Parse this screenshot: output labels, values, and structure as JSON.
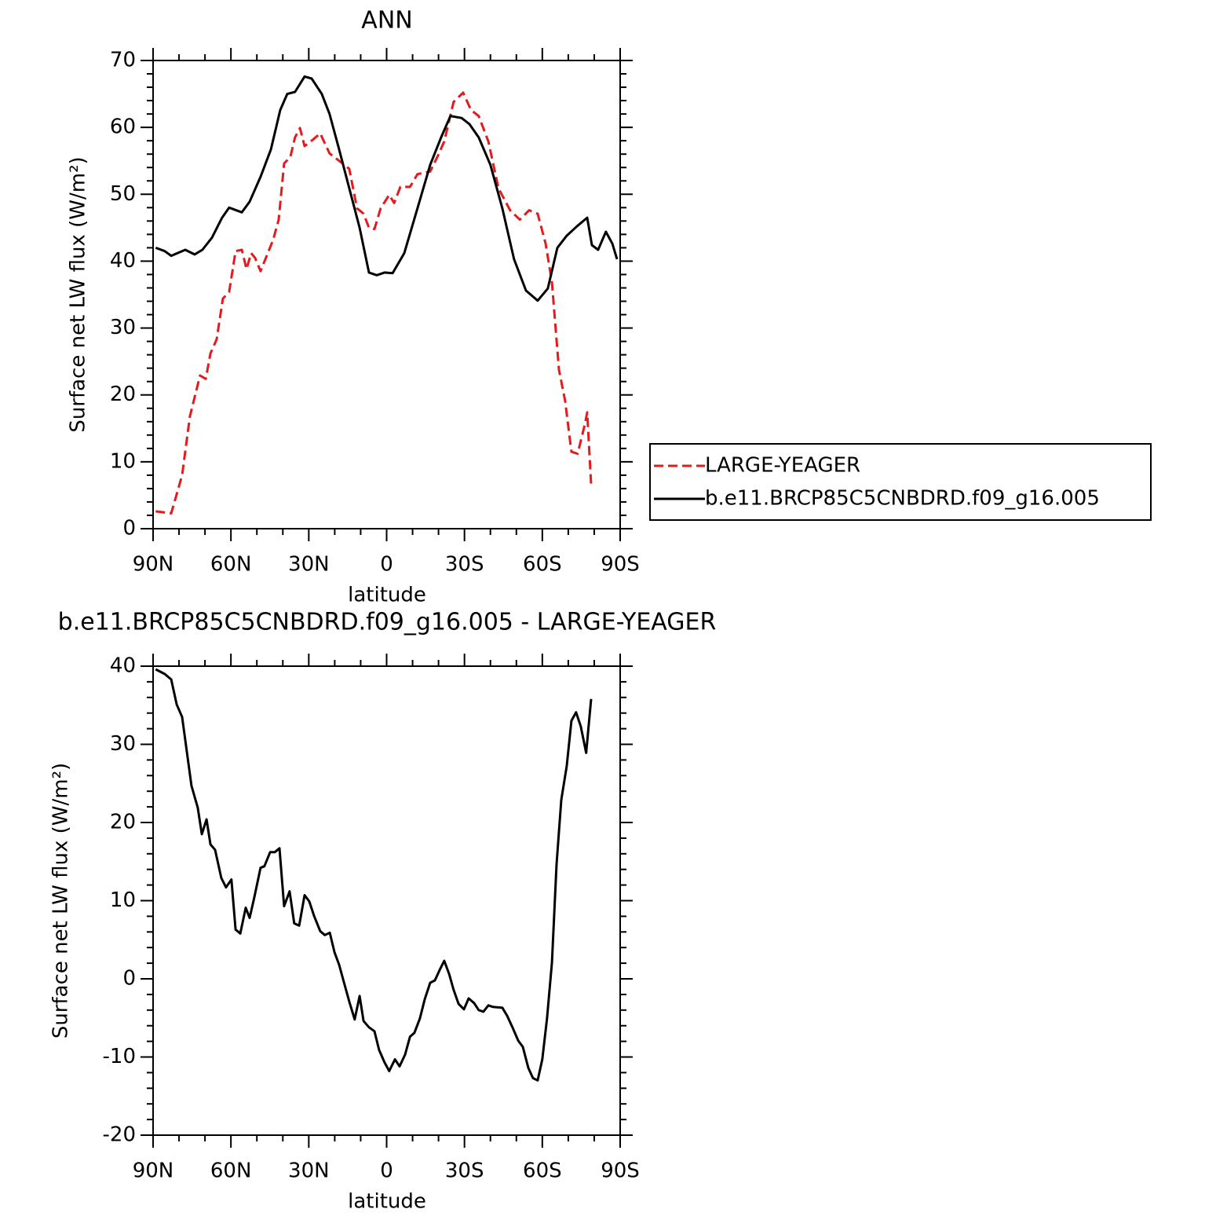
{
  "chart_data": [
    {
      "type": "line",
      "title": "ANN",
      "xlabel": "latitude",
      "ylabel": "Surface net LW flux (W/m²)",
      "xlim": [
        90,
        -90
      ],
      "xticks": [
        {
          "value": 90,
          "label": "90N"
        },
        {
          "value": 60,
          "label": "60N"
        },
        {
          "value": 30,
          "label": "30N"
        },
        0,
        {
          "value": -30,
          "label": "30S"
        },
        {
          "value": -60,
          "label": "60S"
        },
        {
          "value": -90,
          "label": "90S"
        }
      ],
      "ylim": [
        0,
        70
      ],
      "yticks": [
        0,
        10,
        20,
        30,
        40,
        50,
        60,
        70
      ],
      "legend": "outside-right",
      "series": [
        {
          "name": "LARGE-YEAGER",
          "color": "#e41a1c",
          "dash": true,
          "x": [
            89,
            83,
            78.8,
            75.8,
            71.9,
            69.7,
            67.9,
            65.5,
            63.1,
            60.7,
            58.2,
            55.8,
            54,
            52.2,
            50.7,
            48.6,
            46.1,
            43.7,
            41.6,
            39.5,
            37.1,
            35.3,
            33.4,
            31.6,
            28.6,
            25.6,
            22,
            18.3,
            14.4,
            11.4,
            8.9,
            6.8,
            4.7,
            2.3,
            -1,
            -2.9,
            -5.3,
            -9,
            -11.9,
            -16.8,
            -19.8,
            -22.2,
            -25.8,
            -29.5,
            -32.5,
            -35.5,
            -39.2,
            -43.1,
            -47.6,
            -51.3,
            -54.9,
            -58.2,
            -61.3,
            -63.7,
            -66.4,
            -68.8,
            -71.2,
            -73.6,
            -76.4,
            -77.3,
            -78.8
          ],
          "values": [
            2.6,
            2.3,
            8.0,
            16.8,
            22.9,
            22.4,
            26.2,
            28.3,
            34.4,
            35.4,
            41.5,
            41.7,
            38.8,
            41.2,
            40.5,
            38.5,
            40.9,
            43.2,
            46.2,
            54.6,
            55.6,
            58.5,
            59.9,
            57.2,
            58.1,
            59.1,
            56.1,
            55,
            53.8,
            47.9,
            47.1,
            45,
            44.8,
            47.9,
            49.9,
            48.7,
            51.1,
            51.1,
            53,
            53.4,
            55.8,
            57.9,
            63.8,
            65.2,
            62.6,
            61.7,
            57.9,
            50.9,
            47.6,
            46.2,
            47.6,
            47.1,
            42.6,
            36.8,
            23.8,
            19.1,
            11.5,
            11.2,
            15.6,
            17.4,
            6.6
          ]
        },
        {
          "name": "b.e11.BRCP85C5CNBDRD.f09_g16.005",
          "color": "#000000",
          "dash": false,
          "x": [
            89,
            85.5,
            83,
            77.6,
            74,
            71,
            67.3,
            63.4,
            60.7,
            55.8,
            52.8,
            48.6,
            44.6,
            41,
            38.3,
            35.3,
            31.6,
            28.9,
            25,
            22,
            18.3,
            14.4,
            10.4,
            6.8,
            3.8,
            0.8,
            -2.3,
            -6.8,
            -11.9,
            -16.8,
            -21,
            -24.6,
            -28.9,
            -31.9,
            -35.5,
            -40,
            -44.6,
            -49.1,
            -53.7,
            -58.2,
            -62.1,
            -65.8,
            -69.4,
            -73.3,
            -77.3,
            -79.1,
            -81.5,
            -84.5,
            -87,
            -88.8
          ],
          "values": [
            42.0,
            41.5,
            40.8,
            41.7,
            41.0,
            41.7,
            43.5,
            46.5,
            48.0,
            47.3,
            48.9,
            52.6,
            56.7,
            62.6,
            65.0,
            65.3,
            67.6,
            67.3,
            65,
            62,
            56.7,
            50.9,
            45,
            38.3,
            37.9,
            38.3,
            38.2,
            41.2,
            47.9,
            54.4,
            58.5,
            61.7,
            61.4,
            60.5,
            58.5,
            54.4,
            47.9,
            40.3,
            35.6,
            34.1,
            35.9,
            42.0,
            43.8,
            45.2,
            46.5,
            42.4,
            41.7,
            44.4,
            42.6,
            40.3
          ]
        }
      ]
    },
    {
      "type": "line",
      "title": "b.e11.BRCP85C5CNBDRD.f09_g16.005 - LARGE-YEAGER",
      "xlabel": "latitude",
      "ylabel": "Surface net LW flux (W/m²)",
      "xlim": [
        90,
        -90
      ],
      "xticks": [
        {
          "value": 90,
          "label": "90N"
        },
        {
          "value": 60,
          "label": "60N"
        },
        {
          "value": 30,
          "label": "30N"
        },
        0,
        {
          "value": -30,
          "label": "30S"
        },
        {
          "value": -60,
          "label": "60S"
        },
        {
          "value": -90,
          "label": "90S"
        }
      ],
      "ylim": [
        -20,
        40
      ],
      "yticks": [
        -20,
        -10,
        0,
        10,
        20,
        30,
        40
      ],
      "color": "#000000",
      "x": [
        89,
        85.5,
        83,
        80.9,
        78.8,
        75.2,
        72.8,
        71.2,
        69.4,
        67.9,
        66.1,
        63.7,
        61.9,
        59.8,
        58.2,
        56.4,
        54.3,
        52.8,
        51,
        48.6,
        47.1,
        44.9,
        43.1,
        41.3,
        39.5,
        37.4,
        35.6,
        33.7,
        31.6,
        29.8,
        28,
        25.6,
        23.8,
        21.9,
        20.1,
        18.3,
        16.5,
        14.4,
        12.3,
        10.4,
        8.9,
        6.8,
        4.7,
        2.9,
        0.8,
        -1,
        -3.2,
        -5,
        -7.1,
        -9,
        -10.7,
        -12.8,
        -14.7,
        -16.8,
        -18.6,
        -20.4,
        -22.2,
        -24.1,
        -25.8,
        -27.7,
        -29.8,
        -31.6,
        -33.7,
        -35.5,
        -37.3,
        -39.2,
        -41,
        -44.6,
        -46.4,
        -48.5,
        -50.7,
        -52.5,
        -54.6,
        -56.4,
        -58.2,
        -60,
        -61.8,
        -63.7,
        -65.5,
        -67.3,
        -69.4,
        -71.2,
        -73,
        -74.8,
        -76.9,
        -78.8
      ],
      "values": [
        39.6,
        39.0,
        38.3,
        35.1,
        33.5,
        24.7,
        21.9,
        18.5,
        20.4,
        17.2,
        16.5,
        12.9,
        11.7,
        12.7,
        6.3,
        5.8,
        9.1,
        7.8,
        10.4,
        14.2,
        14.4,
        16.2,
        16.2,
        16.7,
        9.3,
        11.2,
        7.1,
        6.8,
        10.7,
        9.9,
        8.1,
        6.1,
        5.6,
        5.9,
        3.4,
        1.8,
        -0.4,
        -2.9,
        -5.2,
        -2.2,
        -5.4,
        -6.2,
        -6.7,
        -9.1,
        -10.7,
        -11.8,
        -10.3,
        -11.2,
        -9.7,
        -7.4,
        -6.9,
        -5.1,
        -2.6,
        -0.5,
        -0.2,
        1.1,
        2.3,
        0.6,
        -1.4,
        -3.2,
        -3.9,
        -2.5,
        -3.1,
        -4.0,
        -4.2,
        -3.4,
        -3.6,
        -3.7,
        -4.7,
        -6.2,
        -7.9,
        -8.7,
        -11.4,
        -12.7,
        -13.0,
        -10.3,
        -5.1,
        2.1,
        14.7,
        22.9,
        27.2,
        33.0,
        34.1,
        32.3,
        28.9,
        35.8
      ]
    }
  ]
}
